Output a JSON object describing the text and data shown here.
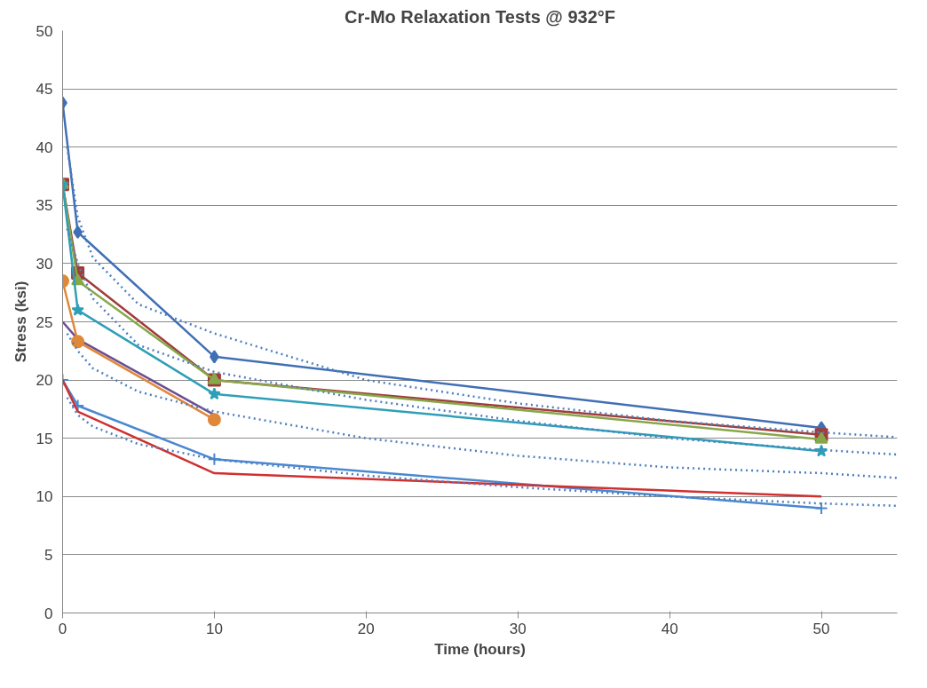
{
  "chart_data": {
    "type": "line",
    "title": "Cr-Mo Relaxation Tests @ 932°F",
    "xlabel": "Time (hours)",
    "ylabel": "Stress (ksi)",
    "xlim": [
      0,
      55
    ],
    "xticks": [
      0,
      10,
      20,
      30,
      40,
      50
    ],
    "ylim": [
      0,
      50
    ],
    "yticks": [
      0,
      5,
      10,
      15,
      20,
      25,
      30,
      35,
      40,
      45,
      50
    ],
    "grid": "y",
    "line_style": "solid",
    "series": [
      {
        "color": "#3f6fb5",
        "marker": "diamond",
        "x": [
          0,
          1,
          10,
          50
        ],
        "values": [
          43.8,
          32.7,
          22,
          15.9
        ]
      },
      {
        "color": "#a03c3a",
        "marker": "square",
        "x": [
          0,
          1,
          10,
          50
        ],
        "values": [
          36.8,
          29.2,
          20,
          15.3
        ]
      },
      {
        "color": "#86a84a",
        "marker": "triangle",
        "x": [
          0,
          1,
          10,
          50
        ],
        "values": [
          36.8,
          28.5,
          20,
          14.9
        ]
      },
      {
        "color": "#6b4f92",
        "marker": "none",
        "x": [
          0,
          1,
          10
        ],
        "values": [
          25,
          23.5,
          17
        ]
      },
      {
        "color": "#2f9fb8",
        "marker": "star",
        "x": [
          0,
          1,
          10,
          50
        ],
        "values": [
          36.8,
          26,
          18.8,
          13.9
        ]
      },
      {
        "color": "#e0883a",
        "marker": "circle",
        "x": [
          0,
          1,
          10
        ],
        "values": [
          28.5,
          23.3,
          16.6
        ]
      },
      {
        "color": "#4a88d0",
        "marker": "cross",
        "x": [
          0,
          1,
          10,
          50
        ],
        "values": [
          20,
          17.8,
          13.2,
          9
        ]
      },
      {
        "color": "#d03030",
        "marker": "none",
        "x": [
          0,
          1,
          10,
          50
        ],
        "values": [
          20,
          17.3,
          12,
          10
        ]
      },
      {
        "color": "#4f7fc0",
        "marker": "none",
        "line_style": "dotted",
        "x": [
          0.3,
          1,
          2,
          5,
          10,
          20,
          30,
          40,
          50,
          55
        ],
        "values": [
          40,
          34,
          30.5,
          26.5,
          24,
          20,
          18,
          16.5,
          15.5,
          15.1
        ]
      },
      {
        "color": "#4f7fc0",
        "marker": "none",
        "line_style": "dotted",
        "x": [
          0.3,
          1,
          2,
          5,
          10,
          20,
          30,
          40,
          50,
          55
        ],
        "values": [
          33,
          30,
          27,
          23,
          20.7,
          18.3,
          16.5,
          15,
          14,
          13.6
        ]
      },
      {
        "color": "#4f7fc0",
        "marker": "none",
        "line_style": "dotted",
        "x": [
          0.3,
          1,
          2,
          5,
          10,
          20,
          30,
          40,
          50,
          55
        ],
        "values": [
          24,
          22.5,
          21,
          19,
          17.3,
          15,
          13.5,
          12.5,
          12,
          11.6
        ]
      },
      {
        "color": "#4f7fc0",
        "marker": "none",
        "line_style": "dotted",
        "x": [
          0.3,
          1,
          2,
          5,
          10,
          20,
          30,
          40,
          50,
          55
        ],
        "values": [
          18.5,
          17,
          16,
          14.5,
          13.2,
          11.8,
          10.8,
          10,
          9.4,
          9.2
        ]
      }
    ]
  }
}
